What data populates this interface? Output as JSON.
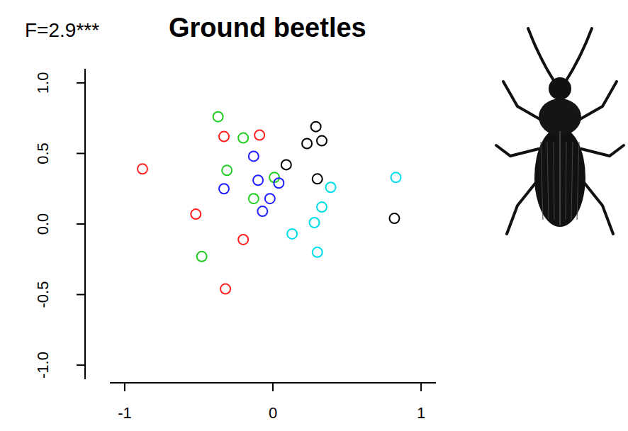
{
  "chart_data": {
    "type": "scatter",
    "title": "Ground beetles",
    "annotation": "F=2.9***",
    "marker": "open_circle",
    "xlim": [
      -1.1,
      1.1
    ],
    "ylim": [
      -1.1,
      1.1
    ],
    "xticks": [
      -1,
      0,
      1
    ],
    "yticks": [
      {
        "value": -1,
        "label": "-1.0"
      },
      {
        "value": -0.5,
        "label": "-0.5"
      },
      {
        "value": 0,
        "label": "0.0"
      },
      {
        "value": 0.5,
        "label": "0.5"
      },
      {
        "value": 1,
        "label": "1.0"
      }
    ],
    "series": [
      {
        "color": "#ff2020",
        "x": [
          -0.88,
          -0.33,
          -0.09,
          -0.52,
          -0.2,
          -0.32
        ],
        "values": [
          0.39,
          0.62,
          0.63,
          0.07,
          -0.11,
          -0.46
        ]
      },
      {
        "color": "#22cc22",
        "x": [
          -0.37,
          -0.2,
          -0.31,
          0.01,
          -0.13,
          -0.48
        ],
        "values": [
          0.76,
          0.61,
          0.38,
          0.33,
          0.18,
          -0.23
        ]
      },
      {
        "color": "#2020ff",
        "x": [
          -0.13,
          -0.1,
          -0.33,
          0.04,
          -0.02,
          -0.07
        ],
        "values": [
          0.48,
          0.31,
          0.25,
          0.29,
          0.18,
          0.09
        ]
      },
      {
        "color": "#000000",
        "x": [
          0.29,
          0.23,
          0.33,
          0.09,
          0.3,
          0.82
        ],
        "values": [
          0.69,
          0.57,
          0.59,
          0.42,
          0.32,
          0.04
        ]
      },
      {
        "color": "#00dde8",
        "x": [
          0.83,
          0.39,
          0.33,
          0.13,
          0.28,
          0.3
        ],
        "values": [
          0.33,
          0.26,
          0.12,
          -0.07,
          0.01,
          -0.2
        ]
      }
    ]
  }
}
